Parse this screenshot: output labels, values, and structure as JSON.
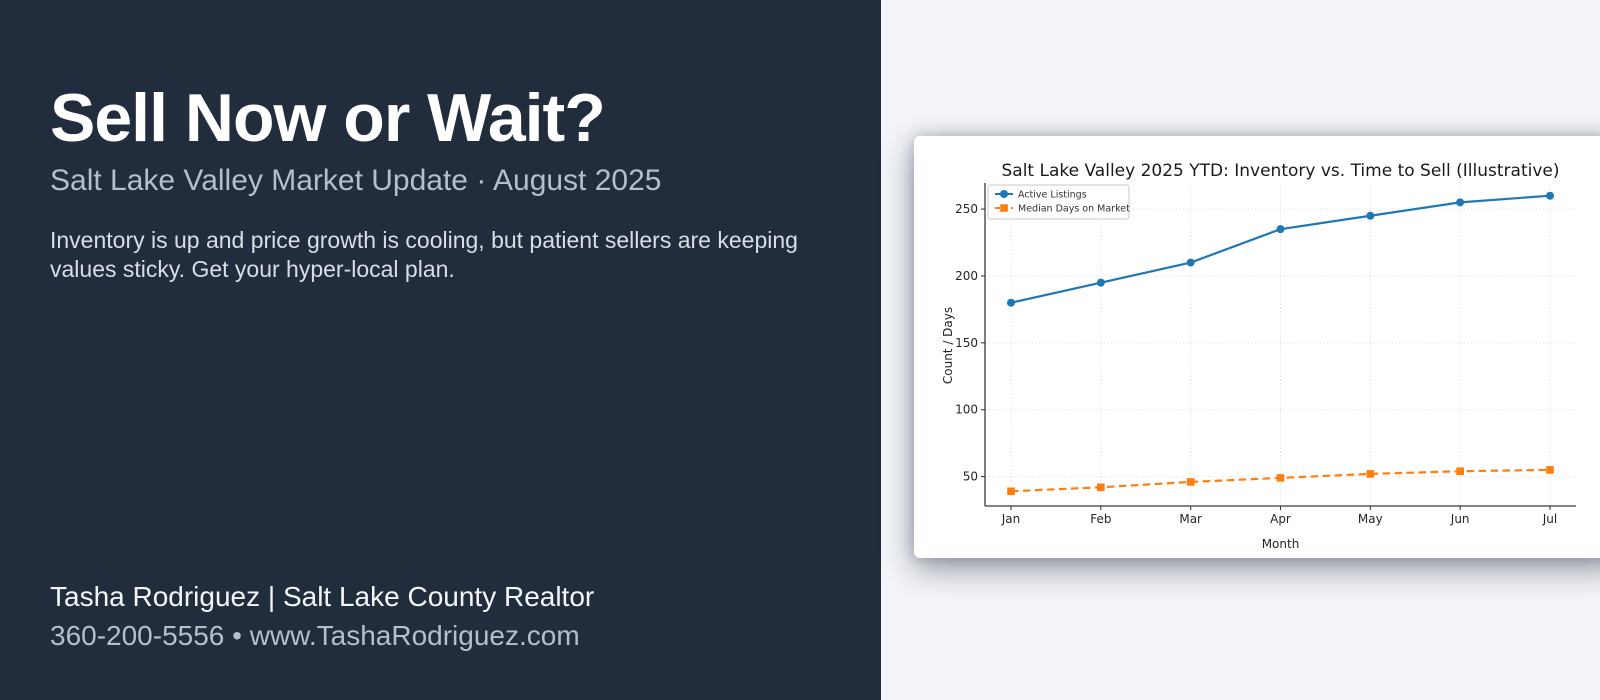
{
  "page": {
    "background": "#f3f5f8"
  },
  "hero": {
    "background": "#212c3c",
    "headline": "Sell Now or Wait?",
    "subtitle": "Salt Lake Valley Market Update · August 2025",
    "body": "Inventory is up and price growth is cooling, but patient sellers are keeping values sticky. Get your hyper-local plan.",
    "agent_line": "Tasha Rodriguez | Salt Lake County Realtor",
    "contact_line": "360-200-5556 • www.TashaRodriguez.com"
  },
  "chart_data": {
    "type": "line",
    "title": "Salt Lake Valley 2025 YTD: Inventory vs. Time to Sell (Illustrative)",
    "xlabel": "Month",
    "ylabel": "Count / Days",
    "categories": [
      "Jan",
      "Feb",
      "Mar",
      "Apr",
      "May",
      "Jun",
      "Jul"
    ],
    "series": [
      {
        "name": "Active Listings",
        "color": "#1f77b4",
        "line_style": "solid",
        "marker": "circle",
        "values": [
          180,
          195,
          210,
          235,
          245,
          255,
          260
        ]
      },
      {
        "name": "Median Days on Market",
        "color": "#ff7f0e",
        "line_style": "dashed",
        "marker": "square",
        "values": [
          39,
          42,
          46,
          49,
          52,
          54,
          55
        ]
      }
    ],
    "yticks": [
      50,
      100,
      150,
      200,
      250
    ],
    "ylim": [
      28,
      268
    ],
    "grid": true,
    "legend_position": "upper left"
  }
}
